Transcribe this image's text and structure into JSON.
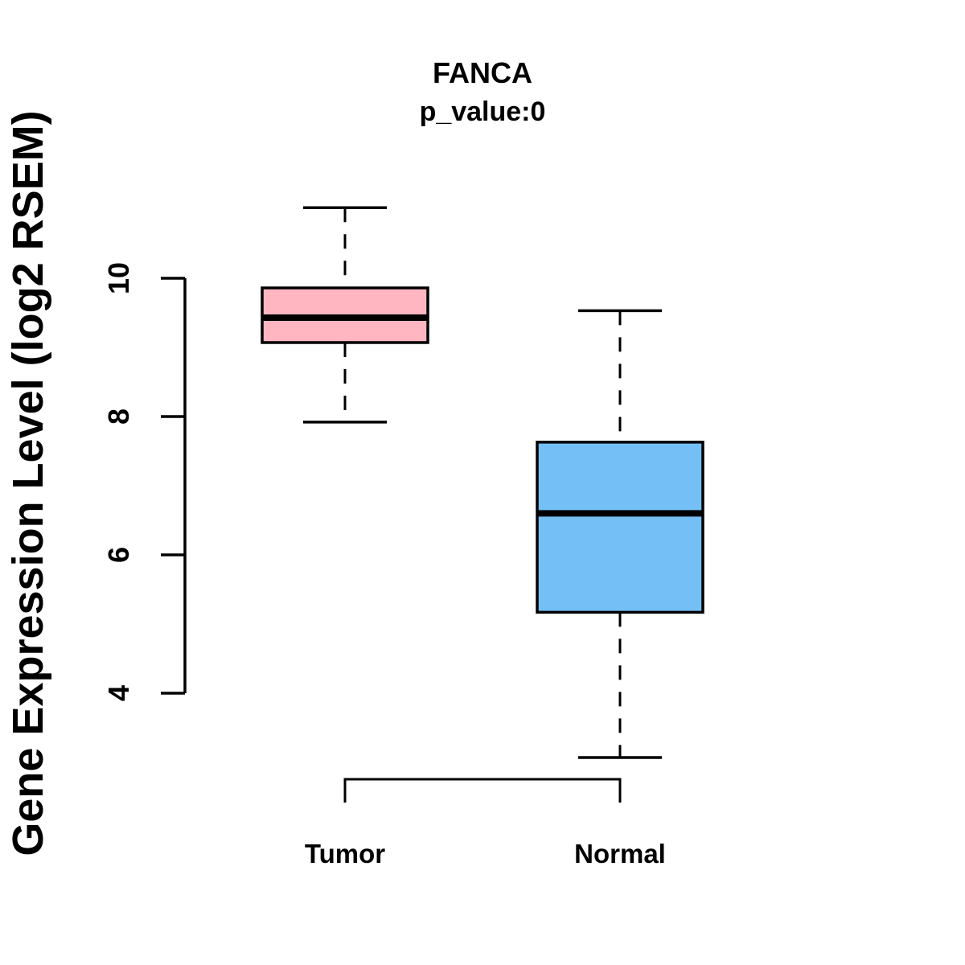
{
  "chart_data": {
    "type": "boxplot",
    "title": "FANCA",
    "subtitle": "p_value:0",
    "ylabel": "Gene Expression Level (log2 RSEM)",
    "xlabel": "",
    "categories": [
      "Tumor",
      "Normal"
    ],
    "yticks": [
      4,
      6,
      8,
      10
    ],
    "ytick_labels": [
      "4",
      "6",
      "8",
      "10"
    ],
    "ylim": [
      2.6,
      11.4
    ],
    "grid": false,
    "legend": "none",
    "groups": [
      {
        "name": "Tumor",
        "color": "#FFB6C1",
        "whisker_low": 7.92,
        "q1": 9.07,
        "median": 9.43,
        "q3": 9.86,
        "whisker_high": 11.02
      },
      {
        "name": "Normal",
        "color": "#74BFF6",
        "whisker_low": 3.07,
        "q1": 5.17,
        "median": 6.6,
        "q3": 7.63,
        "whisker_high": 9.53
      }
    ]
  },
  "colors": {
    "stroke": "#000000",
    "text": "#000000",
    "background": "#FFFFFF",
    "tumor_fill": "#FFB6C1",
    "normal_fill": "#74BFF6"
  }
}
